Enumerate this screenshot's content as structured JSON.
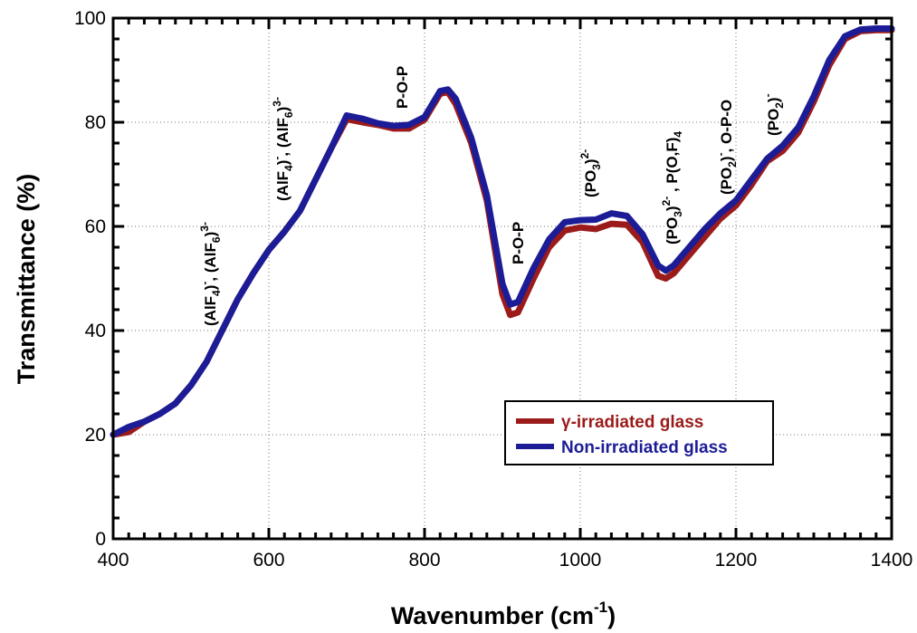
{
  "chart_data": {
    "type": "line",
    "xlabel": "Wavenumber (cm",
    "xlabel_sup": "-1",
    "xlabel_close": ")",
    "ylabel": "Transmittance (%)",
    "xlim": [
      400,
      1400
    ],
    "ylim": [
      0,
      100
    ],
    "x_ticks": [
      "400",
      "600",
      "800",
      "1000",
      "1200",
      "1400"
    ],
    "y_ticks": [
      "0",
      "20",
      "40",
      "60",
      "80",
      "100"
    ],
    "grid": "dotted, major ticks",
    "legend_position": "lower-right",
    "series": [
      {
        "name": "γ-irradiated glass",
        "color": "#9b1b1b",
        "x": [
          400,
          420,
          440,
          460,
          480,
          500,
          520,
          540,
          560,
          580,
          600,
          620,
          640,
          660,
          680,
          700,
          720,
          740,
          760,
          780,
          800,
          810,
          820,
          830,
          840,
          860,
          880,
          900,
          910,
          920,
          940,
          960,
          980,
          1000,
          1020,
          1040,
          1060,
          1080,
          1100,
          1110,
          1120,
          1140,
          1160,
          1180,
          1200,
          1220,
          1240,
          1260,
          1280,
          1300,
          1320,
          1340,
          1360,
          1380,
          1400
        ],
        "y": [
          20,
          20.5,
          22.5,
          24,
          26,
          29.5,
          34,
          40,
          46,
          51,
          55.5,
          59,
          63,
          69,
          75,
          80.6,
          80,
          79.5,
          78.8,
          78.8,
          80.5,
          83,
          85.5,
          85.8,
          83.5,
          76,
          65,
          47,
          43,
          43.5,
          50,
          56,
          59.2,
          59.8,
          59.5,
          60.5,
          60.3,
          57,
          50.5,
          50,
          51,
          54.5,
          58,
          61.5,
          64,
          68,
          72.5,
          74.5,
          78,
          84,
          91,
          96,
          97.5,
          97.7,
          97.7
        ]
      },
      {
        "name": "Non-irradiated glass",
        "color": "#1c1c96",
        "x": [
          400,
          420,
          440,
          460,
          480,
          500,
          520,
          540,
          560,
          580,
          600,
          620,
          640,
          660,
          680,
          700,
          720,
          740,
          760,
          780,
          800,
          810,
          820,
          830,
          840,
          860,
          880,
          900,
          910,
          920,
          940,
          960,
          980,
          1000,
          1020,
          1040,
          1060,
          1080,
          1100,
          1110,
          1120,
          1140,
          1160,
          1180,
          1200,
          1220,
          1240,
          1260,
          1280,
          1300,
          1320,
          1340,
          1360,
          1380,
          1400
        ],
        "y": [
          20,
          21.5,
          22.5,
          24,
          26,
          29.5,
          34,
          40,
          46,
          51,
          55.5,
          59,
          63,
          69,
          75,
          81.3,
          80.7,
          79.8,
          79.3,
          79.5,
          81,
          83.5,
          86,
          86.3,
          84.5,
          77,
          66,
          49,
          45,
          45.5,
          52,
          57.5,
          60.8,
          61.2,
          61.3,
          62.5,
          62,
          58.5,
          52.5,
          51.5,
          52.5,
          56,
          59.5,
          62.5,
          65,
          69,
          73,
          75.5,
          79,
          85,
          92,
          96.5,
          97.8,
          98,
          98
        ]
      }
    ],
    "annotations": [
      {
        "base": "(AlF",
        "sub": "4",
        "sup": ")",
        "supm": "-",
        "rest": ", (AlF",
        "sub2": "6",
        "sup2": ")",
        "supm2": "3-"
      },
      {
        "base": "(AlF",
        "sub": "4",
        "sup": ")",
        "supm": "-",
        "rest": ", (AlF",
        "sub2": "6",
        "sup2": ")",
        "supm2": "3-"
      },
      {
        "text": "P-O-P"
      },
      {
        "text": "P-O-P"
      },
      {
        "base": "(PO",
        "sub": "3",
        "sup": ")",
        "supm": "2-"
      },
      {
        "base": "(PO",
        "sub": "3",
        "sup": ")",
        "supm": "2-",
        "rest": " , P(O,F)",
        "sub2": "4"
      },
      {
        "base": "(PO",
        "sub": "2",
        "sup": ")",
        "supm": "-",
        "rest": ", O-P-O"
      },
      {
        "base": "(PO",
        "sub": "2",
        "sup": ")",
        "supm": "-"
      }
    ]
  }
}
